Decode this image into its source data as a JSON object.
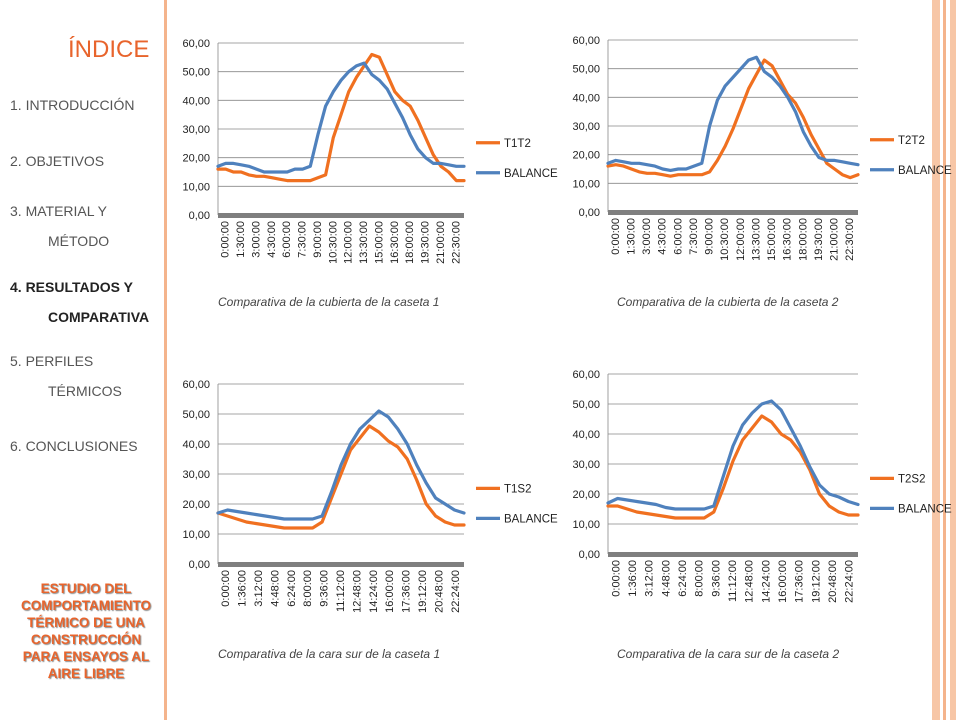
{
  "colors": {
    "accent": "#e8642c",
    "series_primary": "#f07020",
    "series_balance": "#4f81bd"
  },
  "index": {
    "title": "ÍNDICE",
    "items": [
      {
        "label": "1. INTRODUCCIÓN"
      },
      {
        "label": "2. OBJETIVOS"
      },
      {
        "label": "3. MATERIAL Y",
        "label2": "MÉTODO"
      },
      {
        "label": "4. RESULTADOS  Y",
        "label2": "COMPARATIVA",
        "active": true
      },
      {
        "label": "5. PERFILES",
        "label2": "TÉRMICOS"
      },
      {
        "label": "6. CONCLUSIONES"
      }
    ],
    "footer": [
      "ESTUDIO DEL",
      "COMPORTAMIENTO",
      "TÉRMICO DE UNA",
      "CONSTRUCCIÓN",
      "PARA ENSAYOS AL",
      "AIRE LIBRE"
    ]
  },
  "chart_data": [
    {
      "type": "line",
      "caption": "Comparativa de la cubierta de la caseta 1",
      "ylim": [
        0,
        60
      ],
      "yticks": [
        "0,00",
        "10,00",
        "20,00",
        "30,00",
        "40,00",
        "50,00",
        "60,00"
      ],
      "xticks": [
        "0:00:00",
        "1:30:00",
        "3:00:00",
        "4:30:00",
        "6:00:00",
        "7:30:00",
        "9:00:00",
        "10:30:00",
        "12:00:00",
        "13:30:00",
        "15:00:00",
        "16:30:00",
        "18:00:00",
        "19:30:00",
        "21:00:00",
        "22:30:00"
      ],
      "grid": true,
      "legend": "right",
      "series": [
        {
          "name": "T1T2",
          "values": [
            16,
            16,
            15,
            15,
            14,
            13.5,
            13.5,
            13,
            12.5,
            12,
            12,
            12,
            12,
            13,
            14,
            27,
            35,
            43,
            48,
            52,
            56,
            55,
            49,
            43,
            40,
            38,
            33,
            27,
            21,
            17,
            15,
            12,
            12
          ]
        },
        {
          "name": "BALANCE",
          "values": [
            17,
            18,
            18,
            17.5,
            17,
            16,
            15,
            15,
            15,
            15,
            16,
            16,
            17,
            28,
            38,
            43,
            47,
            50,
            52,
            53,
            49,
            47,
            44,
            39,
            34,
            28,
            23,
            20,
            18,
            18,
            17.5,
            17,
            17
          ]
        }
      ]
    },
    {
      "type": "line",
      "caption": "Comparativa de la cubierta de la caseta 2",
      "ylim": [
        0,
        60
      ],
      "yticks": [
        "0,00",
        "10,00",
        "20,00",
        "30,00",
        "40,00",
        "50,00",
        "60,00"
      ],
      "xticks": [
        "0:00:00",
        "1:30:00",
        "3:00:00",
        "4:30:00",
        "6:00:00",
        "7:30:00",
        "9:00:00",
        "10:30:00",
        "12:00:00",
        "13:30:00",
        "15:00:00",
        "16:30:00",
        "18:00:00",
        "19:30:00",
        "21:00:00",
        "22:30:00"
      ],
      "grid": true,
      "legend": "right",
      "series": [
        {
          "name": "T2T2",
          "values": [
            16,
            16.5,
            16,
            15,
            14,
            13.5,
            13.5,
            13,
            12.5,
            13,
            13,
            13,
            13,
            14,
            18,
            23,
            29,
            36,
            43,
            48,
            53,
            51,
            46,
            41,
            38,
            33,
            27,
            22,
            17,
            15,
            13,
            12,
            13
          ]
        },
        {
          "name": "BALANCE",
          "values": [
            17,
            18,
            17.5,
            17,
            17,
            16.5,
            16,
            15,
            14.5,
            15,
            15,
            16,
            17,
            30,
            39,
            44,
            47,
            50,
            53,
            54,
            49,
            47,
            44,
            40,
            35,
            28,
            23,
            19,
            18,
            18,
            17.5,
            17,
            16.5
          ]
        }
      ]
    },
    {
      "type": "line",
      "caption": "Comparativa de la cara sur de la caseta 1",
      "ylim": [
        0,
        60
      ],
      "yticks": [
        "0,00",
        "10,00",
        "20,00",
        "30,00",
        "40,00",
        "50,00",
        "60,00"
      ],
      "xticks": [
        "0:00:00",
        "1:36:00",
        "3:12:00",
        "4:48:00",
        "6:24:00",
        "8:00:00",
        "9:36:00",
        "11:12:00",
        "12:48:00",
        "14:24:00",
        "16:00:00",
        "17:36:00",
        "19:12:00",
        "20:48:00",
        "22:24:00"
      ],
      "grid": true,
      "legend": "right",
      "series": [
        {
          "name": "T1S2",
          "values": [
            17,
            16,
            15,
            14,
            13.5,
            13,
            12.5,
            12,
            12,
            12,
            12,
            14,
            22,
            30,
            38,
            42,
            46,
            44,
            41,
            39,
            35,
            28,
            20,
            16,
            14,
            13,
            13
          ]
        },
        {
          "name": "BALANCE",
          "values": [
            17,
            18,
            17.5,
            17,
            16.5,
            16,
            15.5,
            15,
            15,
            15,
            15,
            16,
            24,
            33,
            40,
            45,
            48,
            51,
            49,
            45,
            40,
            33,
            27,
            22,
            20,
            18,
            17
          ]
        }
      ]
    },
    {
      "type": "line",
      "caption": "Comparativa de la cara sur de la caseta 2",
      "ylim": [
        0,
        60
      ],
      "yticks": [
        "0,00",
        "10,00",
        "20,00",
        "30,00",
        "40,00",
        "50,00",
        "60,00"
      ],
      "xticks": [
        "0:00:00",
        "1:36:00",
        "3:12:00",
        "4:48:00",
        "6:24:00",
        "8:00:00",
        "9:36:00",
        "11:12:00",
        "12:48:00",
        "14:24:00",
        "16:00:00",
        "17:36:00",
        "19:12:00",
        "20:48:00",
        "22:24:00"
      ],
      "grid": true,
      "legend": "right",
      "series": [
        {
          "name": "T2S2",
          "values": [
            16,
            16,
            15,
            14,
            13.5,
            13,
            12.5,
            12,
            12,
            12,
            12,
            14,
            22,
            31,
            38,
            42,
            46,
            44,
            40,
            38,
            34,
            28,
            20,
            16,
            14,
            13,
            13
          ]
        },
        {
          "name": "BALANCE",
          "values": [
            17,
            18.5,
            18,
            17.5,
            17,
            16.5,
            15.5,
            15,
            15,
            15,
            15,
            16,
            26,
            36,
            43,
            47,
            50,
            51,
            48,
            42,
            36,
            29,
            23,
            20,
            19,
            17.5,
            16.5
          ]
        }
      ]
    }
  ]
}
